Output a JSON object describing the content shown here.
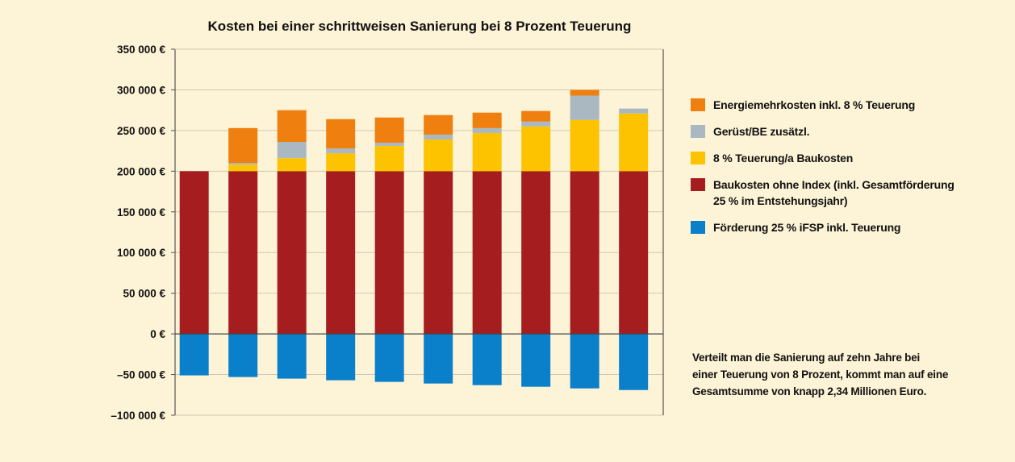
{
  "chart_data": {
    "type": "bar",
    "stacked": true,
    "title": "Kosten bei einer schrittweisen Sanierung bei 8 Prozent Teuerung",
    "xlabel": "",
    "ylabel": "",
    "ylim": [
      -100000,
      350000
    ],
    "yticks": [
      350000,
      300000,
      250000,
      200000,
      150000,
      100000,
      50000,
      0,
      -50000,
      -100000
    ],
    "ytick_labels": [
      "350 000 €",
      "300 000 €",
      "250 000 €",
      "200 000 €",
      "150 000 €",
      "100 000 €",
      "50 000 €",
      "0 €",
      "–50 000 €",
      "–100 000 €"
    ],
    "grid": true,
    "legend_position": "right",
    "categories": [
      "",
      "",
      "",
      "",
      "",
      "",
      "",
      "",
      "",
      ""
    ],
    "series": [
      {
        "name": "Baukosten ohne Index (inkl. Gesamtförderung 25 % im Entstehungsjahr)",
        "color": "#a61d1f",
        "values": [
          200000,
          200000,
          200000,
          200000,
          200000,
          200000,
          200000,
          200000,
          200000,
          200000
        ]
      },
      {
        "name": "8 % Teuerung/a Baukosten",
        "color": "#fdc300",
        "values": [
          0,
          8000,
          16000,
          22000,
          31000,
          39000,
          47000,
          55000,
          63000,
          71000
        ]
      },
      {
        "name": "Gerüst/BE zusätzl.",
        "color": "#a9b8c1",
        "values": [
          0,
          2000,
          20000,
          6000,
          4000,
          6000,
          6000,
          6000,
          30000,
          6000
        ]
      },
      {
        "name": "Energiemehrkosten inkl. 8 % Teuerung",
        "color": "#ef7f0f",
        "values": [
          0,
          43000,
          39000,
          36000,
          31000,
          24000,
          19000,
          13000,
          7000,
          0
        ]
      },
      {
        "name": "Förderung 25 % iFSP inkl. Teuerung",
        "color": "#0a7fca",
        "values": [
          -51000,
          -53000,
          -55000,
          -57000,
          -59000,
          -61000,
          -63000,
          -65000,
          -67000,
          -69000
        ]
      }
    ]
  },
  "legend": {
    "items": [
      {
        "label_lines": [
          "Energiemehrkosten inkl. 8 % Teuerung"
        ],
        "color": "#ef7f0f"
      },
      {
        "label_lines": [
          "Gerüst/BE zusätzl."
        ],
        "color": "#a9b8c1"
      },
      {
        "label_lines": [
          "8 % Teuerung/a Baukosten"
        ],
        "color": "#fdc300"
      },
      {
        "label_lines": [
          "Baukosten ohne Index (inkl. Gesamtförderung",
          "25 % im Entstehungsjahr)"
        ],
        "color": "#a61d1f"
      },
      {
        "label_lines": [
          "Förderung 25 % iFSP inkl. Teuerung"
        ],
        "color": "#0a7fca"
      }
    ]
  },
  "note": {
    "lines": [
      "Verteilt man die Sanierung auf zehn Jahre bei",
      "einer Teuerung von 8 Prozent, kommt man auf eine",
      "Gesamtsumme von knapp 2,34 Millionen Euro."
    ]
  },
  "colors": {
    "background": "#fdf3d6",
    "axis": "#555555",
    "grid": "#cfc7b2"
  }
}
